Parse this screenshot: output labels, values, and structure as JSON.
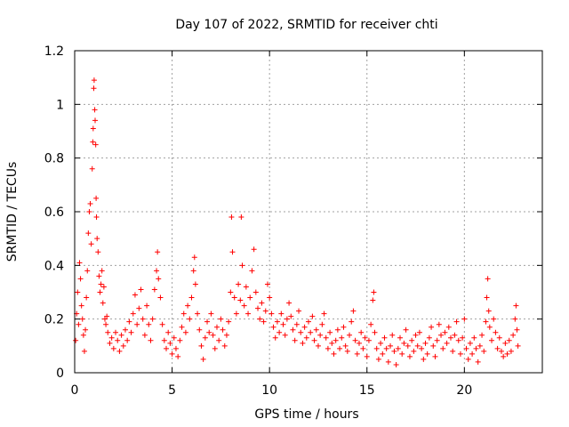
{
  "chart_data": {
    "type": "scatter",
    "title": "Day 107 of 2022, SRMTID for receiver chti",
    "xlabel": "GPS time / hours",
    "ylabel": "SRMTID / TECUs",
    "xlim": [
      0,
      24
    ],
    "ylim": [
      0,
      1.2
    ],
    "x_ticks": [
      0,
      5,
      10,
      15,
      20
    ],
    "x_tick_labels": [
      "0",
      "5",
      "10",
      "15",
      "20"
    ],
    "y_ticks": [
      0,
      0.2,
      0.4,
      0.6,
      0.8,
      1,
      1.2
    ],
    "y_tick_labels": [
      "0",
      "0.2",
      "0.4",
      "0.6",
      "0.8",
      "1",
      "1.2"
    ],
    "grid": true,
    "marker": "+",
    "color": "#ff0000",
    "series": [
      {
        "name": "SRMTID",
        "points": [
          [
            0.05,
            0.12
          ],
          [
            0.1,
            0.22
          ],
          [
            0.15,
            0.3
          ],
          [
            0.2,
            0.18
          ],
          [
            0.25,
            0.41
          ],
          [
            0.3,
            0.35
          ],
          [
            0.35,
            0.25
          ],
          [
            0.4,
            0.2
          ],
          [
            0.45,
            0.14
          ],
          [
            0.5,
            0.08
          ],
          [
            0.55,
            0.16
          ],
          [
            0.6,
            0.28
          ],
          [
            0.65,
            0.38
          ],
          [
            0.7,
            0.52
          ],
          [
            0.75,
            0.6
          ],
          [
            0.8,
            0.63
          ],
          [
            0.85,
            0.48
          ],
          [
            0.9,
            0.76
          ],
          [
            0.93,
            0.86
          ],
          [
            0.95,
            0.91
          ],
          [
            0.98,
            1.06
          ],
          [
            1.0,
            1.09
          ],
          [
            1.03,
            0.98
          ],
          [
            1.05,
            0.94
          ],
          [
            1.08,
            0.85
          ],
          [
            1.1,
            0.65
          ],
          [
            1.12,
            0.58
          ],
          [
            1.15,
            0.5
          ],
          [
            1.2,
            0.45
          ],
          [
            1.25,
            0.36
          ],
          [
            1.3,
            0.3
          ],
          [
            1.35,
            0.33
          ],
          [
            1.4,
            0.38
          ],
          [
            1.45,
            0.26
          ],
          [
            1.5,
            0.32
          ],
          [
            1.55,
            0.2
          ],
          [
            1.6,
            0.18
          ],
          [
            1.65,
            0.21
          ],
          [
            1.7,
            0.15
          ],
          [
            1.8,
            0.11
          ],
          [
            1.9,
            0.13
          ],
          [
            2.0,
            0.09
          ],
          [
            2.1,
            0.15
          ],
          [
            2.2,
            0.12
          ],
          [
            2.3,
            0.08
          ],
          [
            2.4,
            0.14
          ],
          [
            2.5,
            0.1
          ],
          [
            2.6,
            0.16
          ],
          [
            2.7,
            0.12
          ],
          [
            2.8,
            0.19
          ],
          [
            2.9,
            0.15
          ],
          [
            3.0,
            0.22
          ],
          [
            3.1,
            0.29
          ],
          [
            3.2,
            0.18
          ],
          [
            3.3,
            0.24
          ],
          [
            3.4,
            0.31
          ],
          [
            3.5,
            0.2
          ],
          [
            3.6,
            0.14
          ],
          [
            3.7,
            0.25
          ],
          [
            3.8,
            0.18
          ],
          [
            3.9,
            0.12
          ],
          [
            4.0,
            0.2
          ],
          [
            4.1,
            0.31
          ],
          [
            4.2,
            0.38
          ],
          [
            4.25,
            0.45
          ],
          [
            4.3,
            0.35
          ],
          [
            4.4,
            0.28
          ],
          [
            4.5,
            0.18
          ],
          [
            4.6,
            0.12
          ],
          [
            4.7,
            0.09
          ],
          [
            4.8,
            0.15
          ],
          [
            4.9,
            0.11
          ],
          [
            5.0,
            0.07
          ],
          [
            5.1,
            0.13
          ],
          [
            5.2,
            0.09
          ],
          [
            5.3,
            0.06
          ],
          [
            5.4,
            0.12
          ],
          [
            5.5,
            0.17
          ],
          [
            5.6,
            0.22
          ],
          [
            5.7,
            0.15
          ],
          [
            5.8,
            0.25
          ],
          [
            5.9,
            0.2
          ],
          [
            6.0,
            0.28
          ],
          [
            6.1,
            0.38
          ],
          [
            6.15,
            0.43
          ],
          [
            6.2,
            0.33
          ],
          [
            6.3,
            0.22
          ],
          [
            6.4,
            0.16
          ],
          [
            6.5,
            0.1
          ],
          [
            6.6,
            0.05
          ],
          [
            6.7,
            0.13
          ],
          [
            6.8,
            0.19
          ],
          [
            6.9,
            0.15
          ],
          [
            7.0,
            0.22
          ],
          [
            7.1,
            0.14
          ],
          [
            7.2,
            0.09
          ],
          [
            7.3,
            0.17
          ],
          [
            7.4,
            0.12
          ],
          [
            7.5,
            0.2
          ],
          [
            7.6,
            0.16
          ],
          [
            7.7,
            0.1
          ],
          [
            7.8,
            0.14
          ],
          [
            7.9,
            0.19
          ],
          [
            8.0,
            0.3
          ],
          [
            8.05,
            0.58
          ],
          [
            8.1,
            0.45
          ],
          [
            8.2,
            0.28
          ],
          [
            8.3,
            0.22
          ],
          [
            8.4,
            0.33
          ],
          [
            8.5,
            0.27
          ],
          [
            8.55,
            0.58
          ],
          [
            8.6,
            0.4
          ],
          [
            8.7,
            0.25
          ],
          [
            8.8,
            0.32
          ],
          [
            8.9,
            0.22
          ],
          [
            9.0,
            0.28
          ],
          [
            9.1,
            0.38
          ],
          [
            9.2,
            0.46
          ],
          [
            9.3,
            0.3
          ],
          [
            9.4,
            0.24
          ],
          [
            9.5,
            0.2
          ],
          [
            9.6,
            0.26
          ],
          [
            9.7,
            0.19
          ],
          [
            9.8,
            0.23
          ],
          [
            9.9,
            0.33
          ],
          [
            10.0,
            0.28
          ],
          [
            10.1,
            0.22
          ],
          [
            10.2,
            0.17
          ],
          [
            10.3,
            0.13
          ],
          [
            10.4,
            0.19
          ],
          [
            10.5,
            0.15
          ],
          [
            10.6,
            0.22
          ],
          [
            10.7,
            0.18
          ],
          [
            10.8,
            0.14
          ],
          [
            10.9,
            0.2
          ],
          [
            11.0,
            0.26
          ],
          [
            11.1,
            0.21
          ],
          [
            11.2,
            0.16
          ],
          [
            11.3,
            0.12
          ],
          [
            11.4,
            0.18
          ],
          [
            11.5,
            0.23
          ],
          [
            11.6,
            0.15
          ],
          [
            11.7,
            0.11
          ],
          [
            11.8,
            0.17
          ],
          [
            11.9,
            0.13
          ],
          [
            12.0,
            0.19
          ],
          [
            12.1,
            0.15
          ],
          [
            12.2,
            0.21
          ],
          [
            12.3,
            0.12
          ],
          [
            12.4,
            0.16
          ],
          [
            12.5,
            0.1
          ],
          [
            12.6,
            0.14
          ],
          [
            12.7,
            0.18
          ],
          [
            12.8,
            0.22
          ],
          [
            12.9,
            0.13
          ],
          [
            13.0,
            0.09
          ],
          [
            13.1,
            0.15
          ],
          [
            13.2,
            0.11
          ],
          [
            13.3,
            0.07
          ],
          [
            13.4,
            0.12
          ],
          [
            13.5,
            0.16
          ],
          [
            13.6,
            0.09
          ],
          [
            13.7,
            0.13
          ],
          [
            13.8,
            0.17
          ],
          [
            13.9,
            0.1
          ],
          [
            14.0,
            0.08
          ],
          [
            14.1,
            0.14
          ],
          [
            14.2,
            0.19
          ],
          [
            14.3,
            0.23
          ],
          [
            14.4,
            0.12
          ],
          [
            14.5,
            0.07
          ],
          [
            14.6,
            0.11
          ],
          [
            14.7,
            0.15
          ],
          [
            14.8,
            0.09
          ],
          [
            14.9,
            0.13
          ],
          [
            15.0,
            0.06
          ],
          [
            15.1,
            0.12
          ],
          [
            15.2,
            0.18
          ],
          [
            15.3,
            0.27
          ],
          [
            15.35,
            0.3
          ],
          [
            15.4,
            0.15
          ],
          [
            15.5,
            0.09
          ],
          [
            15.6,
            0.05
          ],
          [
            15.7,
            0.11
          ],
          [
            15.8,
            0.07
          ],
          [
            15.9,
            0.13
          ],
          [
            16.0,
            0.09
          ],
          [
            16.1,
            0.04
          ],
          [
            16.2,
            0.1
          ],
          [
            16.3,
            0.14
          ],
          [
            16.4,
            0.08
          ],
          [
            16.5,
            0.03
          ],
          [
            16.6,
            0.09
          ],
          [
            16.7,
            0.13
          ],
          [
            16.8,
            0.07
          ],
          [
            16.9,
            0.11
          ],
          [
            17.0,
            0.16
          ],
          [
            17.1,
            0.1
          ],
          [
            17.2,
            0.06
          ],
          [
            17.3,
            0.12
          ],
          [
            17.4,
            0.08
          ],
          [
            17.5,
            0.14
          ],
          [
            17.6,
            0.1
          ],
          [
            17.7,
            0.15
          ],
          [
            17.8,
            0.09
          ],
          [
            17.9,
            0.05
          ],
          [
            18.0,
            0.11
          ],
          [
            18.1,
            0.07
          ],
          [
            18.2,
            0.13
          ],
          [
            18.3,
            0.17
          ],
          [
            18.4,
            0.1
          ],
          [
            18.5,
            0.06
          ],
          [
            18.6,
            0.12
          ],
          [
            18.7,
            0.18
          ],
          [
            18.8,
            0.14
          ],
          [
            18.9,
            0.09
          ],
          [
            19.0,
            0.15
          ],
          [
            19.1,
            0.11
          ],
          [
            19.2,
            0.17
          ],
          [
            19.3,
            0.13
          ],
          [
            19.4,
            0.08
          ],
          [
            19.5,
            0.14
          ],
          [
            19.6,
            0.19
          ],
          [
            19.7,
            0.12
          ],
          [
            19.8,
            0.07
          ],
          [
            19.9,
            0.13
          ],
          [
            20.0,
            0.2
          ],
          [
            20.1,
            0.09
          ],
          [
            20.2,
            0.05
          ],
          [
            20.3,
            0.11
          ],
          [
            20.4,
            0.07
          ],
          [
            20.5,
            0.13
          ],
          [
            20.6,
            0.09
          ],
          [
            20.7,
            0.04
          ],
          [
            20.8,
            0.1
          ],
          [
            20.9,
            0.14
          ],
          [
            21.0,
            0.08
          ],
          [
            21.1,
            0.19
          ],
          [
            21.15,
            0.28
          ],
          [
            21.2,
            0.35
          ],
          [
            21.25,
            0.23
          ],
          [
            21.3,
            0.17
          ],
          [
            21.4,
            0.12
          ],
          [
            21.5,
            0.2
          ],
          [
            21.6,
            0.15
          ],
          [
            21.7,
            0.09
          ],
          [
            21.8,
            0.13
          ],
          [
            21.9,
            0.08
          ],
          [
            22.0,
            0.06
          ],
          [
            22.1,
            0.11
          ],
          [
            22.2,
            0.07
          ],
          [
            22.3,
            0.12
          ],
          [
            22.4,
            0.08
          ],
          [
            22.5,
            0.14
          ],
          [
            22.6,
            0.2
          ],
          [
            22.65,
            0.25
          ],
          [
            22.7,
            0.16
          ],
          [
            22.75,
            0.1
          ]
        ]
      }
    ]
  }
}
